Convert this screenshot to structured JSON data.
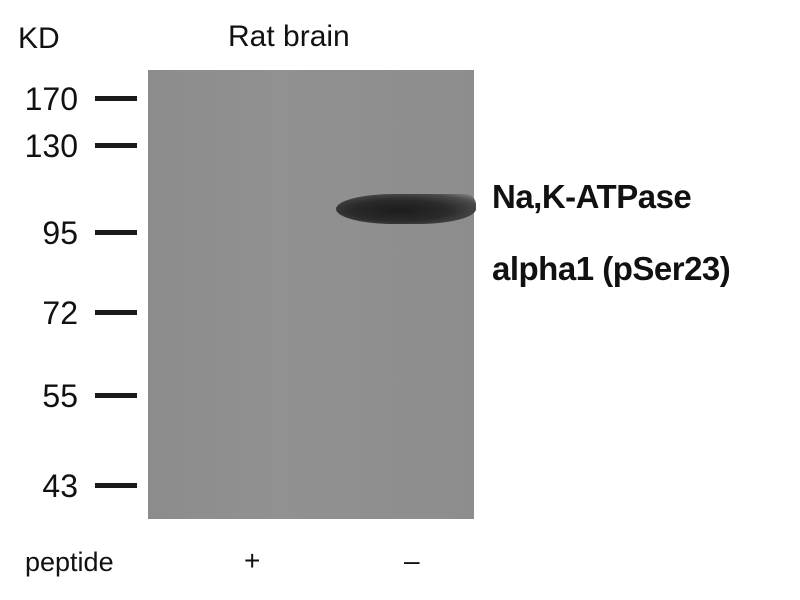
{
  "header": {
    "units_label": "KD",
    "sample_label": "Rat brain"
  },
  "markers": [
    {
      "label": "170",
      "kd": 170
    },
    {
      "label": "130",
      "kd": 130
    },
    {
      "label": "95",
      "kd": 95
    },
    {
      "label": "72",
      "kd": 72
    },
    {
      "label": "55",
      "kd": 55
    },
    {
      "label": "43",
      "kd": 43
    }
  ],
  "target": {
    "line1": "Na,K-ATPase",
    "line2": "alpha1 (pSer23)"
  },
  "footer": {
    "row_label": "peptide",
    "lanes": [
      "+",
      "–"
    ]
  },
  "colors": {
    "membrane": "#8e8e8e",
    "band": "#222222"
  }
}
